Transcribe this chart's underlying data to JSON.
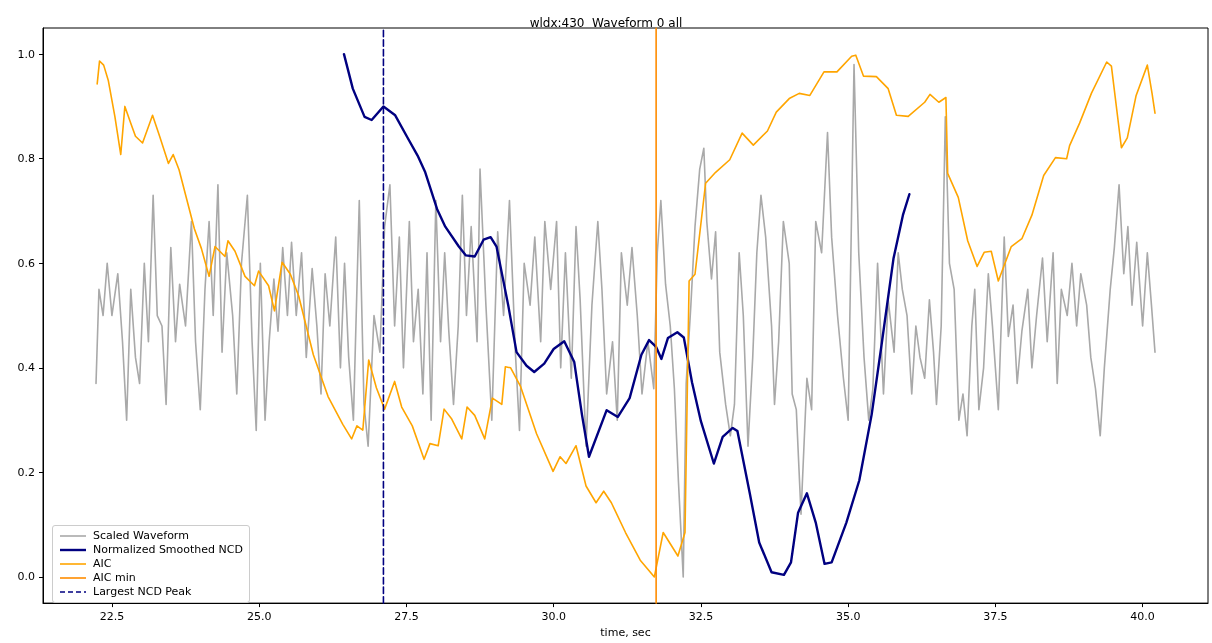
{
  "chart_data": {
    "type": "line",
    "title": "wldx:430  Waveform 0 all",
    "xlabel": "time, sec",
    "xlim": [
      21.33,
      41.11
    ],
    "ylim": [
      -0.05,
      1.05
    ],
    "xticks": [
      22.5,
      {
        "value": 25,
        "label": "25.0"
      },
      27.5,
      {
        "value": 30,
        "label": "30.0"
      },
      32.5,
      {
        "value": 35,
        "label": "35.0"
      },
      37.5,
      {
        "value": 40,
        "label": "40.0"
      }
    ],
    "yticks": [
      {
        "value": 0,
        "label": "0.0"
      },
      0.2,
      0.4,
      0.6,
      0.8,
      {
        "value": 1,
        "label": "1.0"
      }
    ],
    "grid": false,
    "legend": "bottom left",
    "marker": "none",
    "line_style": "solid",
    "series": [
      {
        "name": "Scaled Waveform",
        "color": "#a9a9a9",
        "x": [
          22.23,
          22.28,
          22.35,
          22.42,
          22.5,
          22.6,
          22.68,
          22.75,
          22.82,
          22.9,
          22.97,
          23.05,
          23.12,
          23.2,
          23.27,
          23.35,
          23.42,
          23.5,
          23.58,
          23.65,
          23.75,
          23.85,
          23.92,
          24.0,
          24.08,
          24.15,
          24.22,
          24.3,
          24.37,
          24.45,
          24.55,
          24.62,
          24.7,
          24.8,
          24.88,
          24.95,
          25.02,
          25.1,
          25.17,
          25.25,
          25.32,
          25.4,
          25.48,
          25.55,
          25.63,
          25.72,
          25.8,
          25.9,
          25.98,
          26.05,
          26.12,
          26.2,
          26.3,
          26.38,
          26.45,
          26.52,
          26.6,
          26.7,
          26.78,
          26.85,
          26.95,
          27.05,
          27.13,
          27.22,
          27.3,
          27.38,
          27.45,
          27.55,
          27.62,
          27.7,
          27.78,
          27.85,
          27.92,
          28.0,
          28.08,
          28.15,
          28.22,
          28.3,
          28.38,
          28.45,
          28.52,
          28.6,
          28.7,
          28.75,
          28.85,
          28.95,
          29.05,
          29.15,
          29.25,
          29.35,
          29.42,
          29.5,
          29.6,
          29.68,
          29.78,
          29.85,
          29.95,
          30.05,
          30.12,
          30.2,
          30.3,
          30.38,
          30.45,
          30.55,
          30.65,
          30.75,
          30.82,
          30.9,
          31.0,
          31.08,
          31.15,
          31.25,
          31.33,
          31.42,
          31.5,
          31.6,
          31.7,
          31.76,
          31.82,
          31.9,
          31.98,
          32.05,
          32.12,
          32.2,
          32.25,
          32.33,
          32.4,
          32.48,
          32.55,
          32.6,
          32.68,
          32.75,
          32.82,
          32.92,
          33.0,
          33.07,
          33.15,
          33.22,
          33.3,
          33.38,
          33.45,
          33.52,
          33.6,
          33.7,
          33.75,
          33.82,
          33.9,
          34.0,
          34.05,
          34.12,
          34.2,
          34.3,
          34.38,
          34.45,
          34.55,
          34.65,
          34.72,
          34.82,
          34.92,
          35.0,
          35.1,
          35.18,
          35.27,
          35.35,
          35.42,
          35.5,
          35.6,
          35.68,
          35.78,
          35.85,
          35.92,
          36.0,
          36.08,
          36.15,
          36.22,
          36.3,
          36.38,
          36.45,
          36.5,
          36.58,
          36.65,
          36.72,
          36.8,
          36.88,
          36.95,
          37.02,
          37.1,
          37.15,
          37.22,
          37.3,
          37.38,
          37.45,
          37.55,
          37.65,
          37.72,
          37.8,
          37.87,
          37.95,
          38.05,
          38.12,
          38.2,
          38.3,
          38.38,
          38.48,
          38.55,
          38.62,
          38.72,
          38.8,
          38.88,
          38.95,
          39.05,
          39.12,
          39.2,
          39.28,
          39.35,
          39.45,
          39.52,
          39.6,
          39.68,
          39.75,
          39.82,
          39.9,
          40.0,
          40.08,
          40.15,
          40.21
        ],
        "values": [
          0.37,
          0.55,
          0.5,
          0.6,
          0.5,
          0.58,
          0.45,
          0.3,
          0.55,
          0.42,
          0.37,
          0.6,
          0.45,
          0.73,
          0.5,
          0.48,
          0.33,
          0.63,
          0.45,
          0.56,
          0.48,
          0.68,
          0.45,
          0.32,
          0.55,
          0.68,
          0.5,
          0.75,
          0.43,
          0.62,
          0.5,
          0.35,
          0.6,
          0.73,
          0.45,
          0.28,
          0.6,
          0.3,
          0.45,
          0.57,
          0.47,
          0.63,
          0.5,
          0.64,
          0.5,
          0.62,
          0.42,
          0.59,
          0.48,
          0.35,
          0.58,
          0.48,
          0.65,
          0.4,
          0.6,
          0.42,
          0.3,
          0.72,
          0.33,
          0.25,
          0.5,
          0.43,
          0.67,
          0.75,
          0.48,
          0.65,
          0.4,
          0.68,
          0.45,
          0.55,
          0.35,
          0.62,
          0.3,
          0.72,
          0.45,
          0.62,
          0.47,
          0.33,
          0.48,
          0.73,
          0.5,
          0.67,
          0.45,
          0.78,
          0.52,
          0.3,
          0.66,
          0.5,
          0.72,
          0.43,
          0.28,
          0.6,
          0.52,
          0.65,
          0.45,
          0.68,
          0.55,
          0.68,
          0.4,
          0.62,
          0.38,
          0.67,
          0.53,
          0.25,
          0.52,
          0.68,
          0.55,
          0.35,
          0.45,
          0.3,
          0.62,
          0.52,
          0.63,
          0.5,
          0.35,
          0.45,
          0.36,
          0.62,
          0.72,
          0.56,
          0.48,
          0.36,
          0.18,
          0.0,
          0.37,
          0.52,
          0.67,
          0.78,
          0.82,
          0.68,
          0.57,
          0.66,
          0.43,
          0.33,
          0.27,
          0.33,
          0.62,
          0.5,
          0.25,
          0.42,
          0.62,
          0.73,
          0.65,
          0.48,
          0.33,
          0.45,
          0.68,
          0.6,
          0.35,
          0.32,
          0.12,
          0.38,
          0.32,
          0.68,
          0.62,
          0.85,
          0.65,
          0.5,
          0.38,
          0.3,
          0.98,
          0.62,
          0.42,
          0.3,
          0.36,
          0.6,
          0.35,
          0.53,
          0.43,
          0.62,
          0.55,
          0.5,
          0.35,
          0.48,
          0.42,
          0.38,
          0.53,
          0.43,
          0.33,
          0.48,
          0.88,
          0.6,
          0.55,
          0.3,
          0.35,
          0.27,
          0.48,
          0.55,
          0.32,
          0.4,
          0.58,
          0.48,
          0.32,
          0.65,
          0.46,
          0.52,
          0.37,
          0.47,
          0.55,
          0.4,
          0.5,
          0.61,
          0.45,
          0.62,
          0.37,
          0.55,
          0.5,
          0.6,
          0.48,
          0.58,
          0.52,
          0.42,
          0.36,
          0.27,
          0.4,
          0.55,
          0.63,
          0.75,
          0.58,
          0.67,
          0.52,
          0.64,
          0.48,
          0.62,
          0.52,
          0.43
        ]
      },
      {
        "name": "Normalized Smoothed NCD",
        "color": "#000080",
        "x": [
          26.44,
          26.59,
          26.79,
          26.91,
          27.11,
          27.31,
          27.52,
          27.69,
          27.82,
          28.02,
          28.16,
          28.39,
          28.51,
          28.66,
          28.81,
          28.93,
          29.03,
          29.23,
          29.37,
          29.54,
          29.67,
          29.84,
          30.0,
          30.18,
          30.35,
          30.48,
          30.6,
          30.9,
          31.09,
          31.29,
          31.49,
          31.62,
          31.74,
          31.83,
          31.94,
          32.1,
          32.21,
          32.35,
          32.5,
          32.72,
          32.87,
          33.04,
          33.12,
          33.33,
          33.49,
          33.7,
          33.91,
          34.03,
          34.15,
          34.3,
          34.45,
          34.6,
          34.72,
          34.97,
          35.19,
          35.4,
          35.56,
          35.77,
          35.93,
          36.04
        ],
        "values": [
          1.0,
          0.934,
          0.88,
          0.874,
          0.9,
          0.883,
          0.84,
          0.806,
          0.774,
          0.704,
          0.67,
          0.632,
          0.615,
          0.613,
          0.645,
          0.65,
          0.632,
          0.519,
          0.43,
          0.404,
          0.392,
          0.408,
          0.436,
          0.451,
          0.411,
          0.311,
          0.23,
          0.319,
          0.306,
          0.342,
          0.425,
          0.453,
          0.44,
          0.417,
          0.457,
          0.468,
          0.458,
          0.372,
          0.298,
          0.217,
          0.268,
          0.285,
          0.279,
          0.16,
          0.066,
          0.009,
          0.004,
          0.028,
          0.123,
          0.16,
          0.104,
          0.025,
          0.028,
          0.104,
          0.185,
          0.311,
          0.438,
          0.609,
          0.692,
          0.732
        ]
      },
      {
        "name": "AIC",
        "color": "#ffa500",
        "x": [
          22.25,
          22.29,
          22.36,
          22.44,
          22.55,
          22.65,
          22.72,
          22.82,
          22.9,
          23.02,
          23.19,
          23.31,
          23.46,
          23.54,
          23.64,
          23.9,
          24.02,
          24.15,
          24.25,
          24.42,
          24.47,
          24.59,
          24.76,
          24.92,
          24.99,
          25.16,
          25.26,
          25.39,
          25.53,
          25.67,
          25.92,
          26.17,
          26.42,
          26.57,
          26.66,
          26.76,
          26.86,
          26.99,
          27.13,
          27.3,
          27.42,
          27.6,
          27.8,
          27.9,
          28.04,
          28.14,
          28.27,
          28.44,
          28.53,
          28.66,
          28.83,
          28.96,
          29.12,
          29.18,
          29.27,
          29.44,
          29.71,
          29.99,
          30.11,
          30.21,
          30.38,
          30.55,
          30.72,
          30.85,
          30.98,
          31.22,
          31.47,
          31.71,
          31.86,
          32.11,
          32.23,
          32.3,
          32.4,
          32.58,
          32.75,
          32.99,
          33.2,
          33.39,
          33.63,
          33.78,
          34.0,
          34.17,
          34.35,
          34.59,
          34.81,
          35.06,
          35.13,
          35.26,
          35.48,
          35.68,
          35.82,
          36.02,
          36.3,
          36.39,
          36.54,
          36.66,
          36.69,
          36.87,
          37.03,
          37.19,
          37.31,
          37.43,
          37.55,
          37.77,
          37.95,
          38.12,
          38.32,
          38.52,
          38.71,
          38.76,
          38.93,
          39.13,
          39.39,
          39.47,
          39.64,
          39.74,
          39.89,
          40.08,
          40.16,
          40.21
        ],
        "values": [
          0.943,
          0.987,
          0.979,
          0.949,
          0.881,
          0.808,
          0.9,
          0.868,
          0.843,
          0.83,
          0.883,
          0.843,
          0.791,
          0.808,
          0.779,
          0.666,
          0.628,
          0.575,
          0.632,
          0.613,
          0.643,
          0.623,
          0.575,
          0.557,
          0.585,
          0.557,
          0.509,
          0.602,
          0.579,
          0.538,
          0.425,
          0.345,
          0.292,
          0.264,
          0.289,
          0.281,
          0.415,
          0.362,
          0.321,
          0.374,
          0.325,
          0.289,
          0.225,
          0.255,
          0.251,
          0.321,
          0.302,
          0.264,
          0.325,
          0.309,
          0.264,
          0.342,
          0.33,
          0.402,
          0.4,
          0.364,
          0.274,
          0.202,
          0.23,
          0.217,
          0.251,
          0.174,
          0.142,
          0.164,
          0.142,
          0.085,
          0.032,
          0.0,
          0.085,
          0.04,
          0.085,
          0.566,
          0.579,
          0.753,
          0.774,
          0.798,
          0.849,
          0.826,
          0.853,
          0.889,
          0.915,
          0.925,
          0.921,
          0.966,
          0.966,
          0.996,
          0.998,
          0.958,
          0.957,
          0.934,
          0.883,
          0.881,
          0.908,
          0.923,
          0.908,
          0.917,
          0.772,
          0.726,
          0.643,
          0.594,
          0.621,
          0.623,
          0.566,
          0.632,
          0.647,
          0.692,
          0.768,
          0.802,
          0.8,
          0.825,
          0.868,
          0.925,
          0.985,
          0.977,
          0.821,
          0.84,
          0.921,
          0.979,
          0.925,
          0.887
        ]
      },
      {
        "name": "AIC min",
        "color": "#ff8c00",
        "x": [
          31.74,
          31.74
        ],
        "values": [
          -0.05,
          1.05
        ]
      },
      {
        "name": "Largest NCD Peak",
        "color": "#000080",
        "line_style": "dashed",
        "x": [
          27.11,
          27.11
        ],
        "values": [
          -0.05,
          1.05
        ]
      }
    ]
  }
}
